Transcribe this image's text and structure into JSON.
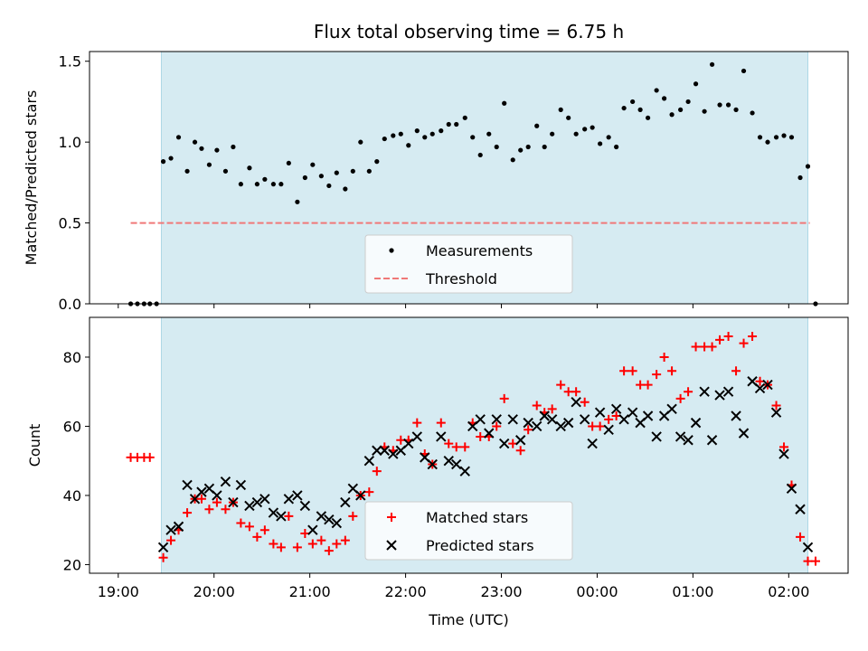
{
  "title": "Flux total observing time = 6.75 h",
  "xlabel": "Time (UTC)",
  "x_tick_labels": [
    "19:00",
    "20:00",
    "21:00",
    "22:00",
    "23:00",
    "00:00",
    "01:00",
    "02:00"
  ],
  "x_tick_hours": [
    19,
    20,
    21,
    22,
    23,
    24,
    25,
    26
  ],
  "x_range_hours": [
    18.7,
    26.62
  ],
  "observing_window_hours": [
    19.45,
    26.2
  ],
  "colors": {
    "window_fill": "#add8e6",
    "measurement": "#000000",
    "threshold": "#f07878",
    "matched": "#ff0000",
    "predicted": "#000000"
  },
  "chart_data": [
    {
      "type": "scatter",
      "ylabel": "Matched/Predicted stars",
      "ylim": [
        0,
        1.56
      ],
      "y_ticks": [
        0.0,
        0.5,
        1.0,
        1.5
      ],
      "y_tick_labels": [
        "0.0",
        "0.5",
        "1.0",
        "1.5"
      ],
      "threshold": {
        "name": "Threshold",
        "y": 0.5,
        "x_range": [
          19.13,
          26.22
        ]
      },
      "legend": {
        "position": "lower-center",
        "entries": [
          "Measurements",
          "Threshold"
        ]
      },
      "series": [
        {
          "name": "Measurements",
          "points": [
            [
              19.13,
              0
            ],
            [
              19.2,
              0
            ],
            [
              19.27,
              0
            ],
            [
              19.33,
              0
            ],
            [
              19.4,
              0
            ],
            [
              19.47,
              0.88
            ],
            [
              19.55,
              0.9
            ],
            [
              19.63,
              1.03
            ],
            [
              19.72,
              0.82
            ],
            [
              19.8,
              1.0
            ],
            [
              19.87,
              0.96
            ],
            [
              19.95,
              0.86
            ],
            [
              20.03,
              0.95
            ],
            [
              20.12,
              0.82
            ],
            [
              20.2,
              0.97
            ],
            [
              20.28,
              0.74
            ],
            [
              20.37,
              0.84
            ],
            [
              20.45,
              0.74
            ],
            [
              20.53,
              0.77
            ],
            [
              20.62,
              0.74
            ],
            [
              20.7,
              0.74
            ],
            [
              20.78,
              0.87
            ],
            [
              20.87,
              0.63
            ],
            [
              20.95,
              0.78
            ],
            [
              21.03,
              0.86
            ],
            [
              21.12,
              0.79
            ],
            [
              21.2,
              0.73
            ],
            [
              21.28,
              0.81
            ],
            [
              21.37,
              0.71
            ],
            [
              21.45,
              0.82
            ],
            [
              21.53,
              1.0
            ],
            [
              21.62,
              0.82
            ],
            [
              21.7,
              0.88
            ],
            [
              21.78,
              1.02
            ],
            [
              21.87,
              1.04
            ],
            [
              21.95,
              1.05
            ],
            [
              22.03,
              0.98
            ],
            [
              22.12,
              1.07
            ],
            [
              22.2,
              1.03
            ],
            [
              22.28,
              1.05
            ],
            [
              22.37,
              1.07
            ],
            [
              22.45,
              1.11
            ],
            [
              22.53,
              1.11
            ],
            [
              22.62,
              1.15
            ],
            [
              22.7,
              1.03
            ],
            [
              22.78,
              0.92
            ],
            [
              22.87,
              1.05
            ],
            [
              22.95,
              0.97
            ],
            [
              23.03,
              1.24
            ],
            [
              23.12,
              0.89
            ],
            [
              23.2,
              0.95
            ],
            [
              23.28,
              0.97
            ],
            [
              23.37,
              1.1
            ],
            [
              23.45,
              0.97
            ],
            [
              23.53,
              1.05
            ],
            [
              23.62,
              1.2
            ],
            [
              23.7,
              1.15
            ],
            [
              23.78,
              1.05
            ],
            [
              23.87,
              1.08
            ],
            [
              23.95,
              1.09
            ],
            [
              24.03,
              0.99
            ],
            [
              24.12,
              1.03
            ],
            [
              24.2,
              0.97
            ],
            [
              24.28,
              1.21
            ],
            [
              24.37,
              1.25
            ],
            [
              24.45,
              1.2
            ],
            [
              24.53,
              1.15
            ],
            [
              24.62,
              1.32
            ],
            [
              24.7,
              1.27
            ],
            [
              24.78,
              1.17
            ],
            [
              24.87,
              1.2
            ],
            [
              24.95,
              1.25
            ],
            [
              25.03,
              1.36
            ],
            [
              25.12,
              1.19
            ],
            [
              25.2,
              1.48
            ],
            [
              25.28,
              1.23
            ],
            [
              25.37,
              1.23
            ],
            [
              25.45,
              1.2
            ],
            [
              25.53,
              1.44
            ],
            [
              25.62,
              1.18
            ],
            [
              25.7,
              1.03
            ],
            [
              25.78,
              1.0
            ],
            [
              25.87,
              1.03
            ],
            [
              25.95,
              1.04
            ],
            [
              26.03,
              1.03
            ],
            [
              26.12,
              0.78
            ],
            [
              26.2,
              0.85
            ],
            [
              26.28,
              0
            ]
          ]
        }
      ]
    },
    {
      "type": "scatter",
      "ylabel": "Count",
      "ylim": [
        17.5,
        91.5
      ],
      "y_ticks": [
        20,
        40,
        60,
        80
      ],
      "y_tick_labels": [
        "20",
        "40",
        "60",
        "80"
      ],
      "legend": {
        "position": "lower-center",
        "entries": [
          "Matched stars",
          "Predicted stars"
        ]
      },
      "series": [
        {
          "name": "Matched stars",
          "marker": "plus",
          "points": [
            [
              19.13,
              51
            ],
            [
              19.2,
              51
            ],
            [
              19.27,
              51
            ],
            [
              19.33,
              51
            ],
            [
              19.47,
              22
            ],
            [
              19.55,
              27
            ],
            [
              19.63,
              30
            ],
            [
              19.72,
              35
            ],
            [
              19.8,
              39
            ],
            [
              19.87,
              39
            ],
            [
              19.95,
              36
            ],
            [
              20.03,
              38
            ],
            [
              20.12,
              36
            ],
            [
              20.2,
              38
            ],
            [
              20.28,
              32
            ],
            [
              20.37,
              31
            ],
            [
              20.45,
              28
            ],
            [
              20.53,
              30
            ],
            [
              20.62,
              26
            ],
            [
              20.7,
              25
            ],
            [
              20.78,
              34
            ],
            [
              20.87,
              25
            ],
            [
              20.95,
              29
            ],
            [
              21.03,
              26
            ],
            [
              21.12,
              27
            ],
            [
              21.2,
              24
            ],
            [
              21.28,
              26
            ],
            [
              21.37,
              27
            ],
            [
              21.45,
              34
            ],
            [
              21.53,
              40
            ],
            [
              21.62,
              41
            ],
            [
              21.7,
              47
            ],
            [
              21.78,
              54
            ],
            [
              21.87,
              53
            ],
            [
              21.95,
              56
            ],
            [
              22.03,
              56
            ],
            [
              22.12,
              61
            ],
            [
              22.2,
              52
            ],
            [
              22.28,
              49
            ],
            [
              22.37,
              61
            ],
            [
              22.45,
              55
            ],
            [
              22.53,
              54
            ],
            [
              22.62,
              54
            ],
            [
              22.7,
              61
            ],
            [
              22.78,
              57
            ],
            [
              22.87,
              57
            ],
            [
              22.95,
              60
            ],
            [
              23.03,
              68
            ],
            [
              23.12,
              55
            ],
            [
              23.2,
              53
            ],
            [
              23.28,
              59
            ],
            [
              23.37,
              66
            ],
            [
              23.45,
              64
            ],
            [
              23.53,
              65
            ],
            [
              23.62,
              72
            ],
            [
              23.7,
              70
            ],
            [
              23.78,
              70
            ],
            [
              23.87,
              67
            ],
            [
              23.95,
              60
            ],
            [
              24.03,
              60
            ],
            [
              24.12,
              62
            ],
            [
              24.2,
              63
            ],
            [
              24.28,
              76
            ],
            [
              24.37,
              76
            ],
            [
              24.45,
              72
            ],
            [
              24.53,
              72
            ],
            [
              24.62,
              75
            ],
            [
              24.7,
              80
            ],
            [
              24.78,
              76
            ],
            [
              24.87,
              68
            ],
            [
              24.95,
              70
            ],
            [
              25.03,
              83
            ],
            [
              25.12,
              83
            ],
            [
              25.2,
              83
            ],
            [
              25.28,
              85
            ],
            [
              25.37,
              86
            ],
            [
              25.45,
              76
            ],
            [
              25.53,
              84
            ],
            [
              25.62,
              86
            ],
            [
              25.7,
              73
            ],
            [
              25.78,
              72
            ],
            [
              25.87,
              66
            ],
            [
              25.95,
              54
            ],
            [
              26.03,
              43
            ],
            [
              26.12,
              28
            ],
            [
              26.2,
              21
            ],
            [
              26.28,
              21
            ]
          ]
        },
        {
          "name": "Predicted stars",
          "marker": "x",
          "points": [
            [
              19.47,
              25
            ],
            [
              19.55,
              30
            ],
            [
              19.63,
              31
            ],
            [
              19.72,
              43
            ],
            [
              19.8,
              39
            ],
            [
              19.87,
              41
            ],
            [
              19.95,
              42
            ],
            [
              20.03,
              40
            ],
            [
              20.12,
              44
            ],
            [
              20.2,
              38
            ],
            [
              20.28,
              43
            ],
            [
              20.37,
              37
            ],
            [
              20.45,
              38
            ],
            [
              20.53,
              39
            ],
            [
              20.62,
              35
            ],
            [
              20.7,
              34
            ],
            [
              20.78,
              39
            ],
            [
              20.87,
              40
            ],
            [
              20.95,
              37
            ],
            [
              21.03,
              30
            ],
            [
              21.12,
              34
            ],
            [
              21.2,
              33
            ],
            [
              21.28,
              32
            ],
            [
              21.37,
              38
            ],
            [
              21.45,
              42
            ],
            [
              21.53,
              40
            ],
            [
              21.62,
              50
            ],
            [
              21.7,
              53
            ],
            [
              21.78,
              53
            ],
            [
              21.87,
              52
            ],
            [
              21.95,
              53
            ],
            [
              22.03,
              55
            ],
            [
              22.12,
              57
            ],
            [
              22.2,
              51
            ],
            [
              22.28,
              49
            ],
            [
              22.37,
              57
            ],
            [
              22.45,
              50
            ],
            [
              22.53,
              49
            ],
            [
              22.62,
              47
            ],
            [
              22.7,
              60
            ],
            [
              22.78,
              62
            ],
            [
              22.87,
              58
            ],
            [
              22.95,
              62
            ],
            [
              23.03,
              55
            ],
            [
              23.12,
              62
            ],
            [
              23.2,
              56
            ],
            [
              23.28,
              61
            ],
            [
              23.37,
              60
            ],
            [
              23.45,
              63
            ],
            [
              23.53,
              62
            ],
            [
              23.62,
              60
            ],
            [
              23.7,
              61
            ],
            [
              23.78,
              67
            ],
            [
              23.87,
              62
            ],
            [
              23.95,
              55
            ],
            [
              24.03,
              64
            ],
            [
              24.12,
              59
            ],
            [
              24.2,
              65
            ],
            [
              24.28,
              62
            ],
            [
              24.37,
              64
            ],
            [
              24.45,
              61
            ],
            [
              24.53,
              63
            ],
            [
              24.62,
              57
            ],
            [
              24.7,
              63
            ],
            [
              24.78,
              65
            ],
            [
              24.87,
              57
            ],
            [
              24.95,
              56
            ],
            [
              25.03,
              61
            ],
            [
              25.12,
              70
            ],
            [
              25.2,
              56
            ],
            [
              25.28,
              69
            ],
            [
              25.37,
              70
            ],
            [
              25.45,
              63
            ],
            [
              25.53,
              58
            ],
            [
              25.62,
              73
            ],
            [
              25.7,
              71
            ],
            [
              25.78,
              72
            ],
            [
              25.87,
              64
            ],
            [
              25.95,
              52
            ],
            [
              26.03,
              42
            ],
            [
              26.12,
              36
            ],
            [
              26.2,
              25
            ]
          ]
        }
      ]
    }
  ]
}
